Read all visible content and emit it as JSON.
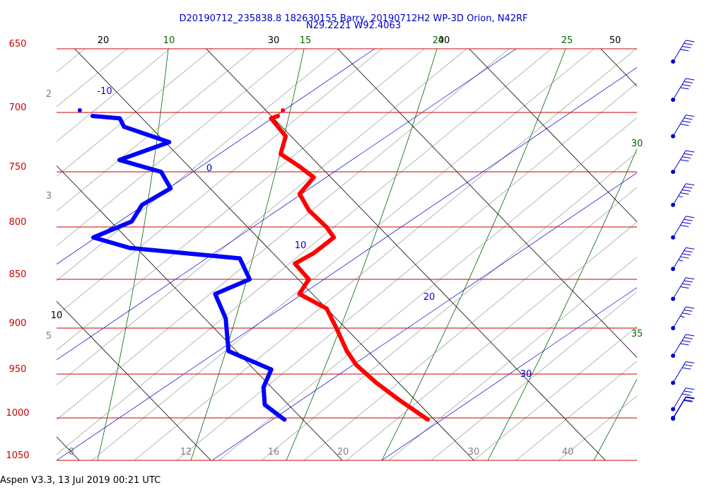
{
  "header": {
    "line1": "D20190712_235838.8 182630155 Barry, 20190712H2 WP-3D Orion, N42RF",
    "line2": "N29.2221 W92.4063"
  },
  "footer": {
    "text": "Aspen V3.3, 13 Jul 2019  00:21 UTC"
  },
  "colors": {
    "isobar": "#cc0000",
    "isotherm": "#000000",
    "dry_adiabat": "#999999",
    "moist_adiabat": "#006600",
    "mixing_ratio": "#0000cc",
    "temperature": "#ff0000",
    "dewpoint": "#0000ff",
    "wind": "#0000cc"
  },
  "chart_data": {
    "type": "line",
    "pressure_levels": [
      650,
      700,
      750,
      800,
      850,
      900,
      950,
      1000,
      1050
    ],
    "isotherm_labels": [
      "20",
      "30",
      "40",
      "50"
    ],
    "moist_adiabat_labels": [
      "10",
      "15",
      "20",
      "25",
      "30",
      "35"
    ],
    "mixing_ratio_labels": [
      "-10",
      "0",
      "10",
      "20",
      "30"
    ],
    "dry_adiabat_labels": [
      "2",
      "3",
      "5",
      "8",
      "10",
      "12",
      "16",
      "20",
      "30",
      "40"
    ],
    "series": [
      {
        "key": "temperature",
        "points": [
          [
            703,
            20.5
          ],
          [
            705,
            19.8
          ],
          [
            720,
            19.6
          ],
          [
            735,
            17.9
          ],
          [
            745,
            18.4
          ],
          [
            755,
            18.7
          ],
          [
            770,
            16.4
          ],
          [
            785,
            15.9
          ],
          [
            800,
            16.0
          ],
          [
            810,
            15.8
          ],
          [
            825,
            13.1
          ],
          [
            835,
            10.9
          ],
          [
            850,
            10.8
          ],
          [
            865,
            9.0
          ],
          [
            880,
            10.0
          ],
          [
            900,
            9.3
          ],
          [
            925,
            8.4
          ],
          [
            940,
            8.1
          ],
          [
            960,
            8.3
          ],
          [
            980,
            8.8
          ],
          [
            1002,
            9.5
          ]
        ]
      },
      {
        "key": "dewpoint",
        "points": [
          [
            703,
            6.4
          ],
          [
            705,
            8.3
          ],
          [
            712,
            8.0
          ],
          [
            725,
            10.3
          ],
          [
            740,
            5.2
          ],
          [
            750,
            7.5
          ],
          [
            765,
            7.0
          ],
          [
            780,
            3.6
          ],
          [
            795,
            1.6
          ],
          [
            810,
            -2.5
          ],
          [
            820,
            -0.5
          ],
          [
            830,
            7.1
          ],
          [
            850,
            6.3
          ],
          [
            865,
            2.6
          ],
          [
            890,
            1.6
          ],
          [
            925,
            -0.6
          ],
          [
            945,
            1.3
          ],
          [
            965,
            -0.6
          ],
          [
            985,
            -1.8
          ],
          [
            1002,
            -1.4
          ]
        ]
      }
    ],
    "wind_barbs": [
      {
        "p": 660,
        "barbs": [
          10,
          10,
          10,
          10
        ]
      },
      {
        "p": 690,
        "barbs": [
          10,
          10,
          10,
          10
        ]
      },
      {
        "p": 720,
        "barbs": [
          10,
          10,
          10,
          10
        ]
      },
      {
        "p": 750,
        "barbs": [
          10,
          10,
          10,
          10
        ]
      },
      {
        "p": 780,
        "barbs": [
          10,
          10,
          10,
          10,
          5
        ]
      },
      {
        "p": 810,
        "barbs": [
          10,
          10,
          10,
          10
        ]
      },
      {
        "p": 840,
        "barbs": [
          10,
          10,
          10,
          10,
          5
        ]
      },
      {
        "p": 870,
        "barbs": [
          10,
          10,
          10,
          10
        ]
      },
      {
        "p": 900,
        "barbs": [
          10,
          10,
          10,
          5
        ]
      },
      {
        "p": 930,
        "barbs": [
          10,
          10,
          10,
          10
        ]
      },
      {
        "p": 960,
        "barbs": [
          10,
          10,
          10
        ]
      },
      {
        "p": 990,
        "barbs": [
          10,
          10,
          10
        ]
      },
      {
        "p": 1020,
        "barbs": [
          10,
          10
        ]
      },
      {
        "p": 1050,
        "barbs": [
          10,
          10
        ]
      }
    ]
  }
}
